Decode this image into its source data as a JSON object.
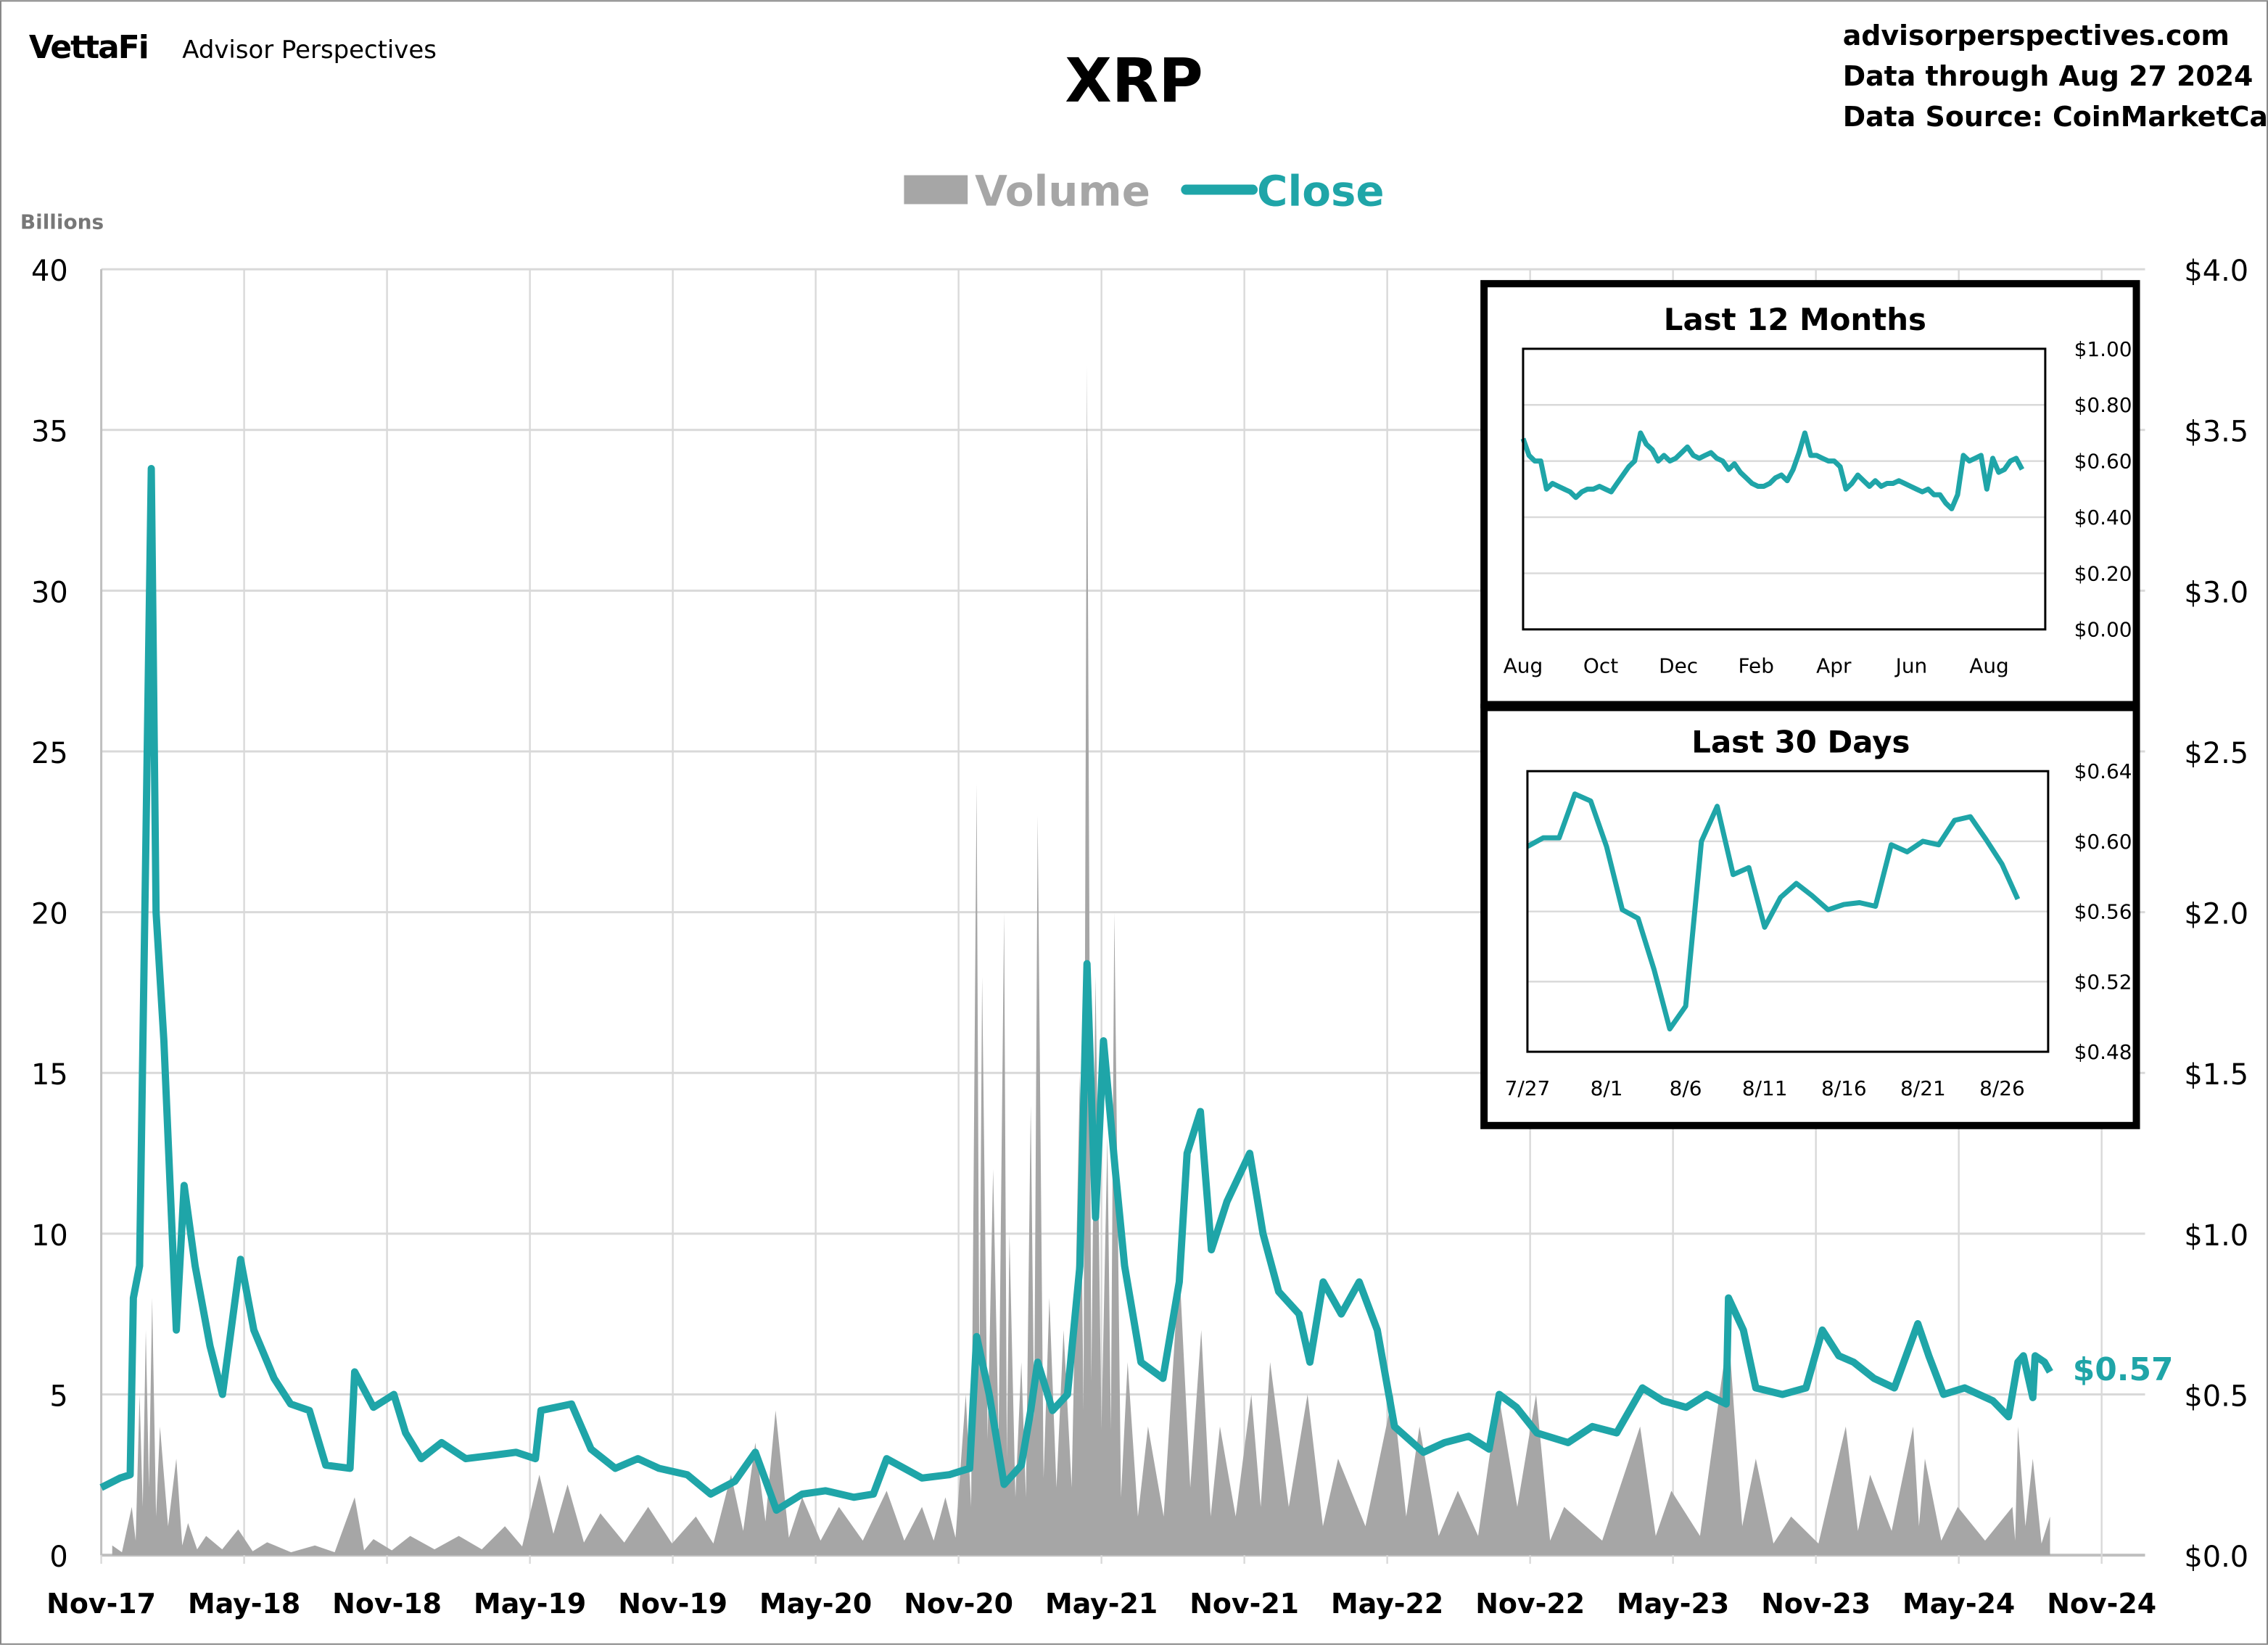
{
  "header": {
    "logo": "VettaFi",
    "brand": "Advisor Perspectives",
    "title": "XRP",
    "site": "advisorperspectives.com",
    "data_through": "Data through Aug 27 2024",
    "data_source": "Data Source: CoinMarketCap"
  },
  "colors": {
    "close": "#1fa5a8",
    "volume": "#a6a6a6",
    "grid": "#d9d9d9",
    "text": "#000000"
  },
  "chart_data": [
    {
      "type": "area+line",
      "title": "XRP",
      "legend": [
        "Volume",
        "Close"
      ],
      "legend_placement": "top",
      "y_left_label": "Billions",
      "y_left_range": [
        0,
        40
      ],
      "y_left_ticks": [
        "0",
        "5",
        "10",
        "15",
        "20",
        "25",
        "30",
        "35",
        "40"
      ],
      "y_right_range": [
        0,
        4.0
      ],
      "y_right_ticks": [
        "$0.0",
        "$0.5",
        "$1.0",
        "$1.5",
        "$2.0",
        "$2.5",
        "$3.0",
        "$3.5",
        "$4.0"
      ],
      "x_range": [
        "2017-11-01",
        "2024-11-01"
      ],
      "x_ticks": [
        "Nov-17",
        "May-18",
        "Nov-18",
        "May-19",
        "Nov-19",
        "May-20",
        "Nov-20",
        "May-21",
        "Nov-21",
        "May-22",
        "Nov-22",
        "May-23",
        "Nov-23",
        "May-24",
        "Nov-24"
      ],
      "grid": true,
      "last_value_label": "$0.57",
      "series": [
        {
          "name": "Volume",
          "axis": "left",
          "type": "area",
          "points": [
            [
              "2017-11-15",
              0.3
            ],
            [
              "2017-12-10",
              1.5
            ],
            [
              "2017-12-20",
              5
            ],
            [
              "2017-12-28",
              7
            ],
            [
              "2018-01-05",
              8
            ],
            [
              "2018-01-15",
              4
            ],
            [
              "2018-02-05",
              3
            ],
            [
              "2018-02-20",
              1
            ],
            [
              "2018-03-15",
              0.6
            ],
            [
              "2018-04-25",
              0.8
            ],
            [
              "2018-06-01",
              0.4
            ],
            [
              "2018-08-01",
              0.3
            ],
            [
              "2018-09-21",
              1.8
            ],
            [
              "2018-10-15",
              0.5
            ],
            [
              "2018-12-01",
              0.6
            ],
            [
              "2019-02-01",
              0.6
            ],
            [
              "2019-04-01",
              0.9
            ],
            [
              "2019-05-15",
              2.5
            ],
            [
              "2019-06-20",
              2.2
            ],
            [
              "2019-08-01",
              1.3
            ],
            [
              "2019-10-01",
              1.5
            ],
            [
              "2019-12-01",
              1.2
            ],
            [
              "2020-01-15",
              2.5
            ],
            [
              "2020-02-15",
              3.5
            ],
            [
              "2020-03-12",
              4.5
            ],
            [
              "2020-04-15",
              1.8
            ],
            [
              "2020-06-01",
              1.5
            ],
            [
              "2020-08-01",
              2
            ],
            [
              "2020-09-15",
              1.5
            ],
            [
              "2020-10-15",
              1.8
            ],
            [
              "2020-11-10",
              5
            ],
            [
              "2020-11-24",
              24
            ],
            [
              "2020-12-01",
              18
            ],
            [
              "2020-12-15",
              12
            ],
            [
              "2020-12-29",
              20
            ],
            [
              "2021-01-05",
              10
            ],
            [
              "2021-01-20",
              6
            ],
            [
              "2021-02-01",
              14
            ],
            [
              "2021-02-10",
              23
            ],
            [
              "2021-02-25",
              8
            ],
            [
              "2021-03-15",
              7
            ],
            [
              "2021-04-05",
              15
            ],
            [
              "2021-04-14",
              37
            ],
            [
              "2021-04-25",
              18
            ],
            [
              "2021-05-10",
              13
            ],
            [
              "2021-05-19",
              20
            ],
            [
              "2021-06-05",
              6
            ],
            [
              "2021-07-01",
              4
            ],
            [
              "2021-08-10",
              9
            ],
            [
              "2021-09-07",
              7
            ],
            [
              "2021-10-01",
              4
            ],
            [
              "2021-11-10",
              5
            ],
            [
              "2021-12-04",
              6
            ],
            [
              "2022-01-21",
              5
            ],
            [
              "2022-03-01",
              3
            ],
            [
              "2022-05-10",
              5
            ],
            [
              "2022-06-13",
              4
            ],
            [
              "2022-08-01",
              2
            ],
            [
              "2022-09-22",
              5
            ],
            [
              "2022-11-09",
              5
            ],
            [
              "2022-12-15",
              1.5
            ],
            [
              "2023-03-22",
              4
            ],
            [
              "2023-05-01",
              2
            ],
            [
              "2023-07-13",
              7
            ],
            [
              "2023-08-17",
              3
            ],
            [
              "2023-10-01",
              1.2
            ],
            [
              "2023-12-10",
              4
            ],
            [
              "2024-01-10",
              2.5
            ],
            [
              "2024-03-05",
              4
            ],
            [
              "2024-03-20",
              3
            ],
            [
              "2024-05-01",
              1.5
            ],
            [
              "2024-07-10",
              1.5
            ],
            [
              "2024-07-17",
              4
            ],
            [
              "2024-08-05",
              3
            ],
            [
              "2024-08-27",
              1.2
            ]
          ]
        },
        {
          "name": "Close",
          "axis": "right",
          "type": "line",
          "points": [
            [
              "2017-11-01",
              0.21
            ],
            [
              "2017-11-25",
              0.24
            ],
            [
              "2017-12-08",
              0.25
            ],
            [
              "2017-12-12",
              0.8
            ],
            [
              "2017-12-20",
              0.9
            ],
            [
              "2017-12-28",
              2.2
            ],
            [
              "2018-01-04",
              3.38
            ],
            [
              "2018-01-10",
              2.0
            ],
            [
              "2018-01-20",
              1.6
            ],
            [
              "2018-02-05",
              0.7
            ],
            [
              "2018-02-15",
              1.15
            ],
            [
              "2018-03-01",
              0.9
            ],
            [
              "2018-03-20",
              0.65
            ],
            [
              "2018-04-05",
              0.5
            ],
            [
              "2018-04-28",
              0.92
            ],
            [
              "2018-05-15",
              0.7
            ],
            [
              "2018-06-10",
              0.55
            ],
            [
              "2018-07-01",
              0.47
            ],
            [
              "2018-07-25",
              0.45
            ],
            [
              "2018-08-15",
              0.28
            ],
            [
              "2018-09-15",
              0.27
            ],
            [
              "2018-09-21",
              0.57
            ],
            [
              "2018-10-15",
              0.46
            ],
            [
              "2018-11-10",
              0.5
            ],
            [
              "2018-11-25",
              0.38
            ],
            [
              "2018-12-15",
              0.3
            ],
            [
              "2019-01-10",
              0.35
            ],
            [
              "2019-02-10",
              0.3
            ],
            [
              "2019-03-15",
              0.31
            ],
            [
              "2019-04-15",
              0.32
            ],
            [
              "2019-05-10",
              0.3
            ],
            [
              "2019-05-17",
              0.45
            ],
            [
              "2019-06-25",
              0.47
            ],
            [
              "2019-07-20",
              0.33
            ],
            [
              "2019-08-20",
              0.27
            ],
            [
              "2019-09-18",
              0.3
            ],
            [
              "2019-10-15",
              0.27
            ],
            [
              "2019-11-20",
              0.25
            ],
            [
              "2019-12-20",
              0.19
            ],
            [
              "2020-01-20",
              0.23
            ],
            [
              "2020-02-15",
              0.32
            ],
            [
              "2020-03-13",
              0.14
            ],
            [
              "2020-04-15",
              0.19
            ],
            [
              "2020-05-15",
              0.2
            ],
            [
              "2020-06-20",
              0.18
            ],
            [
              "2020-07-15",
              0.19
            ],
            [
              "2020-08-01",
              0.3
            ],
            [
              "2020-09-15",
              0.24
            ],
            [
              "2020-10-20",
              0.25
            ],
            [
              "2020-11-15",
              0.27
            ],
            [
              "2020-11-24",
              0.68
            ],
            [
              "2020-12-10",
              0.5
            ],
            [
              "2020-12-29",
              0.22
            ],
            [
              "2021-01-20",
              0.28
            ],
            [
              "2021-02-01",
              0.45
            ],
            [
              "2021-02-10",
              0.6
            ],
            [
              "2021-03-01",
              0.45
            ],
            [
              "2021-03-20",
              0.5
            ],
            [
              "2021-04-05",
              0.9
            ],
            [
              "2021-04-14",
              1.84
            ],
            [
              "2021-04-25",
              1.05
            ],
            [
              "2021-05-05",
              1.6
            ],
            [
              "2021-05-20",
              1.2
            ],
            [
              "2021-06-01",
              0.9
            ],
            [
              "2021-06-22",
              0.6
            ],
            [
              "2021-07-20",
              0.55
            ],
            [
              "2021-08-10",
              0.85
            ],
            [
              "2021-08-20",
              1.25
            ],
            [
              "2021-09-06",
              1.38
            ],
            [
              "2021-09-20",
              0.95
            ],
            [
              "2021-10-10",
              1.1
            ],
            [
              "2021-11-08",
              1.25
            ],
            [
              "2021-11-25",
              1.0
            ],
            [
              "2021-12-15",
              0.82
            ],
            [
              "2022-01-10",
              0.75
            ],
            [
              "2022-01-24",
              0.6
            ],
            [
              "2022-02-10",
              0.85
            ],
            [
              "2022-03-05",
              0.75
            ],
            [
              "2022-03-28",
              0.85
            ],
            [
              "2022-04-20",
              0.7
            ],
            [
              "2022-05-12",
              0.4
            ],
            [
              "2022-06-18",
              0.32
            ],
            [
              "2022-07-15",
              0.35
            ],
            [
              "2022-08-15",
              0.37
            ],
            [
              "2022-09-10",
              0.33
            ],
            [
              "2022-09-23",
              0.5
            ],
            [
              "2022-10-15",
              0.46
            ],
            [
              "2022-11-10",
              0.38
            ],
            [
              "2022-12-20",
              0.35
            ],
            [
              "2023-01-20",
              0.4
            ],
            [
              "2023-02-20",
              0.38
            ],
            [
              "2023-03-25",
              0.52
            ],
            [
              "2023-04-20",
              0.48
            ],
            [
              "2023-05-20",
              0.46
            ],
            [
              "2023-06-15",
              0.5
            ],
            [
              "2023-07-10",
              0.47
            ],
            [
              "2023-07-13",
              0.8
            ],
            [
              "2023-08-01",
              0.7
            ],
            [
              "2023-08-17",
              0.52
            ],
            [
              "2023-09-20",
              0.5
            ],
            [
              "2023-10-20",
              0.52
            ],
            [
              "2023-11-10",
              0.7
            ],
            [
              "2023-12-01",
              0.62
            ],
            [
              "2023-12-20",
              0.6
            ],
            [
              "2024-01-15",
              0.55
            ],
            [
              "2024-02-10",
              0.52
            ],
            [
              "2024-03-11",
              0.72
            ],
            [
              "2024-03-25",
              0.62
            ],
            [
              "2024-04-13",
              0.5
            ],
            [
              "2024-05-10",
              0.52
            ],
            [
              "2024-06-15",
              0.48
            ],
            [
              "2024-07-05",
              0.43
            ],
            [
              "2024-07-17",
              0.6
            ],
            [
              "2024-07-24",
              0.62
            ],
            [
              "2024-08-05",
              0.49
            ],
            [
              "2024-08-08",
              0.62
            ],
            [
              "2024-08-20",
              0.6
            ],
            [
              "2024-08-27",
              0.57
            ]
          ]
        }
      ]
    },
    {
      "type": "line",
      "title": "Last 12 Months",
      "y_range": [
        0,
        1.0
      ],
      "y_ticks": [
        "$0.00",
        "$0.20",
        "$0.40",
        "$0.60",
        "$0.80",
        "$1.00"
      ],
      "x_ticks": [
        "Aug",
        "Oct",
        "Dec",
        "Feb",
        "Apr",
        "Jun",
        "Aug"
      ],
      "grid": true,
      "values": [
        0.68,
        0.62,
        0.6,
        0.6,
        0.5,
        0.52,
        0.51,
        0.5,
        0.49,
        0.47,
        0.49,
        0.5,
        0.5,
        0.51,
        0.5,
        0.49,
        0.52,
        0.55,
        0.58,
        0.6,
        0.7,
        0.66,
        0.64,
        0.6,
        0.62,
        0.6,
        0.61,
        0.63,
        0.65,
        0.62,
        0.61,
        0.62,
        0.63,
        0.61,
        0.6,
        0.57,
        0.59,
        0.56,
        0.54,
        0.52,
        0.51,
        0.51,
        0.52,
        0.54,
        0.55,
        0.53,
        0.57,
        0.63,
        0.7,
        0.62,
        0.62,
        0.61,
        0.6,
        0.6,
        0.58,
        0.5,
        0.52,
        0.55,
        0.53,
        0.51,
        0.53,
        0.51,
        0.52,
        0.52,
        0.53,
        0.52,
        0.51,
        0.5,
        0.49,
        0.5,
        0.48,
        0.48,
        0.45,
        0.43,
        0.48,
        0.62,
        0.6,
        0.61,
        0.62,
        0.5,
        0.61,
        0.56,
        0.57,
        0.6,
        0.61,
        0.57
      ]
    },
    {
      "type": "line",
      "title": "Last 30 Days",
      "y_range": [
        0.48,
        0.64
      ],
      "y_ticks": [
        "$0.48",
        "$0.52",
        "$0.56",
        "$0.60",
        "$0.64"
      ],
      "x_ticks": [
        "7/27",
        "8/1",
        "8/6",
        "8/11",
        "8/16",
        "8/21",
        "8/26"
      ],
      "grid": true,
      "dates": [
        "7/27",
        "7/28",
        "7/29",
        "7/30",
        "7/31",
        "8/1",
        "8/2",
        "8/3",
        "8/4",
        "8/5",
        "8/6",
        "8/7",
        "8/8",
        "8/9",
        "8/10",
        "8/11",
        "8/12",
        "8/13",
        "8/14",
        "8/15",
        "8/16",
        "8/17",
        "8/18",
        "8/19",
        "8/20",
        "8/21",
        "8/22",
        "8/23",
        "8/24",
        "8/25",
        "8/26",
        "8/27"
      ],
      "values": [
        0.597,
        0.602,
        0.602,
        0.627,
        0.623,
        0.597,
        0.561,
        0.556,
        0.527,
        0.493,
        0.506,
        0.6,
        0.62,
        0.581,
        0.585,
        0.551,
        0.568,
        0.576,
        0.569,
        0.561,
        0.564,
        0.565,
        0.563,
        0.598,
        0.594,
        0.6,
        0.598,
        0.612,
        0.614,
        0.601,
        0.587,
        0.567
      ]
    }
  ]
}
